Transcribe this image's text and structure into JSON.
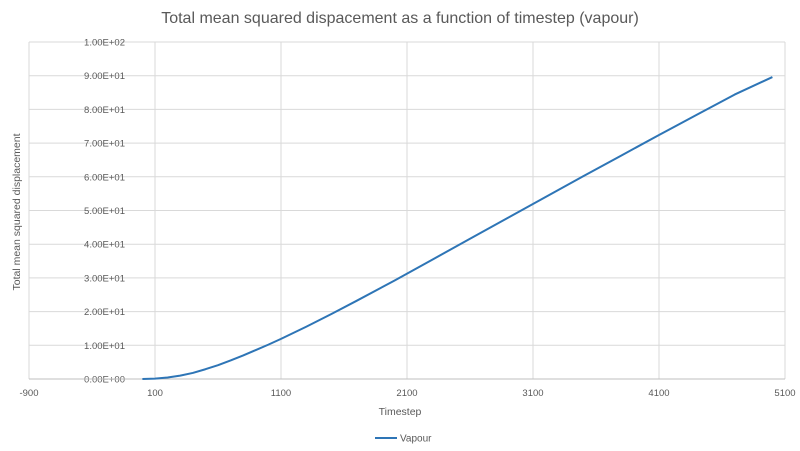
{
  "chart_data": {
    "type": "line",
    "title": "Total mean squared dispacement as a function of timestep (vapour)",
    "xlabel": "Timestep",
    "ylabel": "Total mean squared displacement",
    "xlim": [
      -900,
      5100
    ],
    "ylim": [
      0,
      100
    ],
    "x_ticks": [
      -900,
      100,
      1100,
      2100,
      3100,
      4100,
      5100
    ],
    "x_tick_labels": [
      "-900",
      "100",
      "1100",
      "2100",
      "3100",
      "4100",
      "5100"
    ],
    "y_ticks": [
      0,
      10,
      20,
      30,
      40,
      50,
      60,
      70,
      80,
      90,
      100
    ],
    "y_tick_labels": [
      "0.00E+00",
      "1.00E+01",
      "2.00E+01",
      "3.00E+01",
      "4.00E+01",
      "5.00E+01",
      "6.00E+01",
      "7.00E+01",
      "8.00E+01",
      "9.00E+01",
      "1.00E+02"
    ],
    "grid": true,
    "legend_position": "bottom",
    "series": [
      {
        "name": "Vapour",
        "color": "#2e75b6",
        "x": [
          0,
          100,
          200,
          300,
          400,
          500,
          600,
          700,
          800,
          900,
          1000,
          1100,
          1300,
          1500,
          1700,
          2000,
          2300,
          2600,
          2900,
          3200,
          3500,
          3800,
          4100,
          4400,
          4700,
          5000
        ],
        "y": [
          0,
          0.1,
          0.45,
          1.0,
          1.8,
          2.9,
          4.1,
          5.5,
          7.0,
          8.6,
          10.2,
          11.9,
          15.5,
          19.3,
          23.2,
          29.2,
          35.4,
          41.6,
          47.8,
          54.0,
          60.2,
          66.3,
          72.4,
          78.4,
          84.4,
          89.6
        ]
      }
    ]
  }
}
